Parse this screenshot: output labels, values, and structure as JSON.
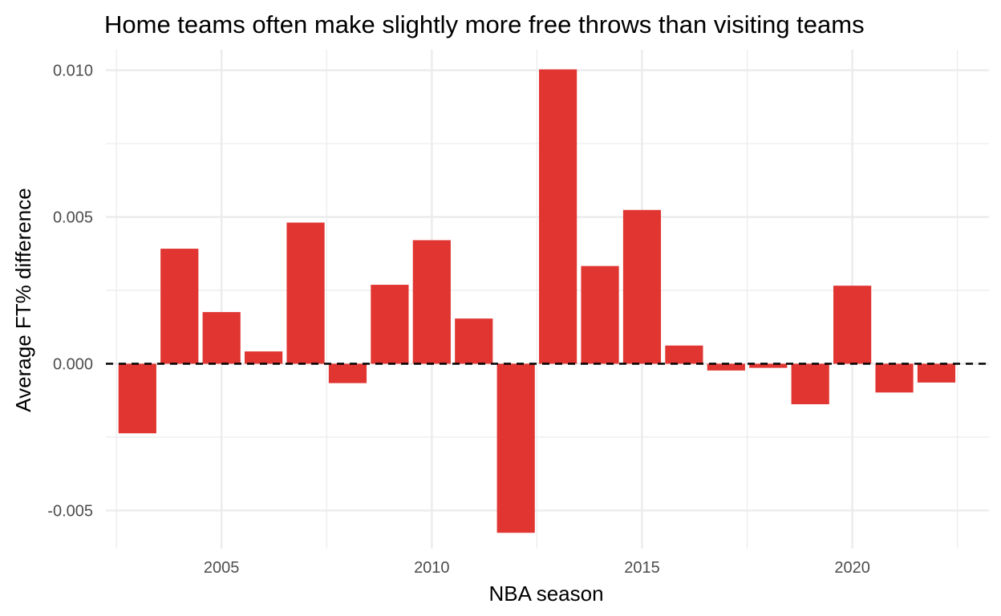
{
  "chart_data": {
    "type": "bar",
    "title": "Home teams often make slightly more free throws than visiting teams",
    "xlabel": "NBA season",
    "ylabel": "Average FT% difference",
    "x": [
      2003,
      2004,
      2005,
      2006,
      2007,
      2008,
      2009,
      2010,
      2011,
      2012,
      2013,
      2014,
      2015,
      2016,
      2017,
      2018,
      2019,
      2020,
      2021,
      2022
    ],
    "values": [
      -0.00237,
      0.00392,
      0.00176,
      0.00042,
      0.00481,
      -0.00066,
      0.00269,
      0.00421,
      0.00154,
      -0.00576,
      0.01003,
      0.00333,
      0.00524,
      0.00062,
      -0.00023,
      -0.00014,
      -0.00138,
      0.00266,
      -0.00098,
      -0.00064
    ],
    "xticks": [
      2005,
      2010,
      2015,
      2020
    ],
    "xtick_labels": [
      "2005",
      "2010",
      "2015",
      "2020"
    ],
    "yticks": [
      -0.005,
      0,
      0.005,
      0.01
    ],
    "ytick_labels": [
      "-0.005",
      "0.000",
      "0.005",
      "0.010"
    ],
    "xlim": [
      2002.25,
      2023.25
    ],
    "ylim": [
      -0.0063,
      0.0107
    ],
    "reference_line": {
      "y": 0,
      "style": "dashed"
    },
    "grid": true,
    "bar_color": "#e03531",
    "grid_color": "#ebebeb"
  }
}
